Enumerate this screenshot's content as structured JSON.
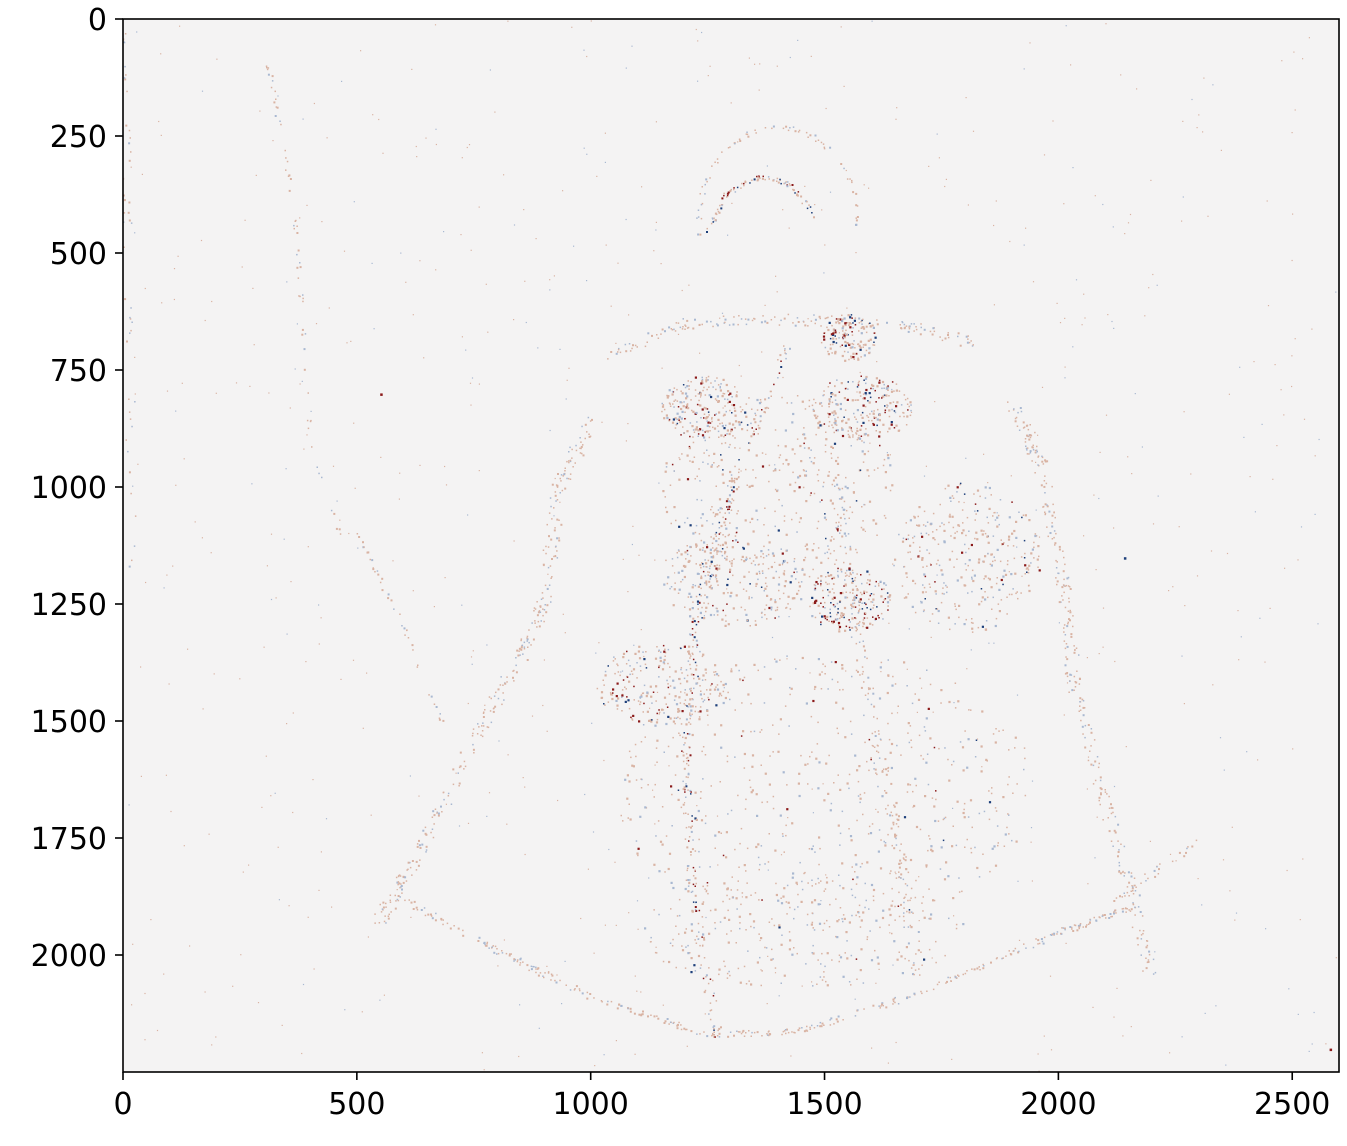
{
  "chart_data": {
    "type": "heatmap",
    "title": "",
    "xlabel": "",
    "ylabel": "",
    "xlim": [
      0,
      2600
    ],
    "ylim": [
      2250,
      0
    ],
    "x_ticks": [
      0,
      500,
      1000,
      1500,
      2000,
      2500
    ],
    "y_ticks": [
      0,
      250,
      500,
      750,
      1000,
      1250,
      1500,
      1750,
      2000
    ],
    "x_tick_labels": [
      "0",
      "500",
      "1000",
      "1500",
      "2000",
      "2500"
    ],
    "y_tick_labels": [
      "0",
      "250",
      "500",
      "750",
      "1000",
      "1250",
      "1500",
      "1750",
      "2000"
    ],
    "colormap": "diverging (blue-white-red)",
    "colors": {
      "background": "#f4f3f3",
      "positive": "#8b1a1a",
      "negative": "#1d3f7a",
      "faint_positive": "#d9b3a3",
      "faint_negative": "#a9b8d1",
      "axis": "#000000"
    },
    "image_description": "near-white high-pass edge residual of a seated robed figure; sparse fine red and blue speckles trace the outlines"
  }
}
